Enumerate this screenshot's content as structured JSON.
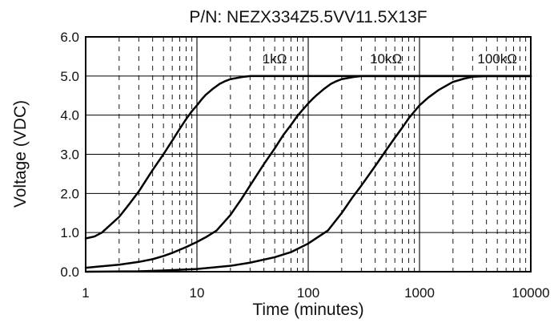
{
  "chart_data": {
    "type": "line",
    "title": "P/N: NEZX334Z5.5VV11.5X13F",
    "xlabel": "Time (minutes)",
    "ylabel": "Voltage (VDC)",
    "x_scale": "log",
    "xlim": [
      1,
      10000
    ],
    "ylim": [
      0,
      6
    ],
    "x_ticks": [
      1,
      10,
      100,
      1000,
      10000
    ],
    "x_tick_labels": [
      "1",
      "10",
      "100",
      "1000",
      "10000"
    ],
    "y_ticks": [
      0,
      1,
      2,
      3,
      4,
      5,
      6
    ],
    "y_tick_labels": [
      "0.0",
      "1.0",
      "2.0",
      "3.0",
      "4.0",
      "5.0",
      "6.0"
    ],
    "grid": {
      "major_x": true,
      "minor_x": true,
      "minor_x_style": "dashed",
      "major_y": true
    },
    "colors": {
      "line": "#000000",
      "grid": "#000000",
      "background": "#ffffff"
    },
    "annotations": [
      {
        "text": "1kΩ",
        "x": 50,
        "y": 5.45
      },
      {
        "text": "10kΩ",
        "x": 500,
        "y": 5.45
      },
      {
        "text": "100kΩ",
        "x": 5000,
        "y": 5.45
      }
    ],
    "series": [
      {
        "x": [
          1,
          1.2,
          1.4,
          1.6,
          2,
          2.5,
          3,
          4,
          5,
          6,
          7,
          8,
          9,
          10,
          11,
          12,
          14,
          16,
          18,
          20,
          25,
          30,
          40,
          10000
        ],
        "values": [
          0.85,
          0.9,
          1.0,
          1.15,
          1.4,
          1.75,
          2.05,
          2.6,
          3.0,
          3.35,
          3.65,
          3.9,
          4.1,
          4.25,
          4.4,
          4.52,
          4.68,
          4.8,
          4.87,
          4.92,
          4.97,
          5.0,
          5.0,
          5.0
        ]
      },
      {
        "x": [
          1,
          2,
          3,
          4,
          5,
          6,
          7,
          8,
          9,
          10,
          12,
          15,
          20,
          25,
          30,
          40,
          50,
          60,
          70,
          80,
          90,
          100,
          110,
          120,
          140,
          160,
          180,
          200,
          250,
          300,
          400,
          10000
        ],
        "values": [
          0.1,
          0.18,
          0.25,
          0.32,
          0.4,
          0.48,
          0.56,
          0.63,
          0.7,
          0.76,
          0.88,
          1.05,
          1.45,
          1.85,
          2.2,
          2.75,
          3.15,
          3.5,
          3.75,
          3.98,
          4.15,
          4.3,
          4.42,
          4.52,
          4.68,
          4.8,
          4.87,
          4.92,
          4.97,
          5.0,
          5.0,
          5.0
        ]
      },
      {
        "x": [
          1,
          3,
          5,
          10,
          20,
          30,
          50,
          70,
          100,
          150,
          200,
          250,
          300,
          400,
          500,
          600,
          700,
          800,
          1000,
          1200,
          1500,
          2000,
          2500,
          3000,
          4000,
          10000
        ],
        "values": [
          0.0,
          0.01,
          0.03,
          0.07,
          0.15,
          0.23,
          0.37,
          0.5,
          0.72,
          1.05,
          1.5,
          1.9,
          2.2,
          2.7,
          3.1,
          3.42,
          3.68,
          3.92,
          4.25,
          4.45,
          4.65,
          4.85,
          4.93,
          4.98,
          5.0,
          5.0
        ]
      }
    ]
  }
}
